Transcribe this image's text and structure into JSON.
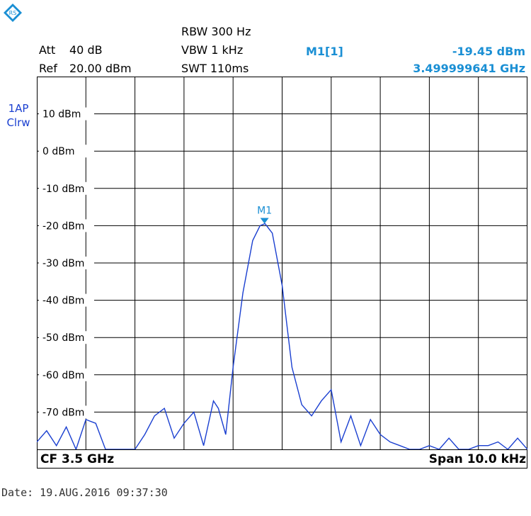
{
  "header": {
    "att_label": "Att",
    "att_value": "40 dB",
    "ref_label": "Ref",
    "ref_value": "20.00 dBm",
    "rbw": "RBW 300 Hz",
    "vbw": "VBW 1 kHz",
    "swt": "SWT 110ms",
    "marker_name": "M1[1]",
    "marker_level": "-19.45 dBm",
    "marker_freq": "3.499999641 GHz"
  },
  "trace_label": {
    "line1": "1AP",
    "line2": "Clrw"
  },
  "footer": {
    "cf": "CF 3.5 GHz",
    "span": "Span 10.0 kHz"
  },
  "date_text": "Date: 19.AUG.2016  09:37:30",
  "logo_icon": "rohde-schwarz-logo-icon",
  "colors": {
    "trace": "#1a3fd0",
    "marker": "#1a8fd4",
    "grid": "#000000"
  },
  "chart_data": {
    "type": "line",
    "title": "",
    "xlabel": "",
    "ylabel": "",
    "x_unit": "kHz",
    "y_unit": "dBm",
    "xlim": [
      3499995.0,
      3500005.0
    ],
    "ylim": [
      -80,
      20
    ],
    "yticks": [
      10,
      0,
      -10,
      -20,
      -30,
      -40,
      -50,
      -60,
      -70
    ],
    "ytick_labels": [
      "10 dBm",
      "0 dBm",
      "-10 dBm",
      "-20 dBm",
      "-30 dBm",
      "-40 dBm",
      "-50 dBm",
      "-60 dBm",
      "-70 dBm"
    ],
    "grid": true,
    "legend": "none",
    "marker": {
      "label": "M1",
      "x": 3499999.641,
      "y": -19.45
    },
    "series": [
      {
        "x": [
          3499995.0,
          3499995.2,
          3499995.4,
          3499995.6,
          3499995.8,
          3499996.0,
          3499996.2,
          3499996.4,
          3499996.6,
          3499996.8,
          3499997.0,
          3499997.2,
          3499997.4,
          3499997.6,
          3499997.8,
          3499998.0,
          3499998.2,
          3499998.4,
          3499998.6,
          3499998.7,
          3499998.85,
          3499999.0,
          3499999.2,
          3499999.4,
          3499999.55,
          3499999.65,
          3499999.8,
          3500000.0,
          3500000.2,
          3500000.4,
          3500000.6,
          3500000.8,
          3500001.0,
          3500001.2,
          3500001.4,
          3500001.6,
          3500001.8,
          3500002.0,
          3500002.2,
          3500002.4,
          3500002.6,
          3500002.8,
          3500003.0,
          3500003.2,
          3500003.4,
          3500003.6,
          3500003.8,
          3500004.0,
          3500004.2,
          3500004.4,
          3500004.6,
          3500004.8,
          3500005.0
        ],
        "y": [
          -78,
          -75,
          -79,
          -74,
          -80,
          -72,
          -73,
          -80,
          -80,
          -80,
          -80,
          -76,
          -71,
          -69,
          -77,
          -73,
          -70,
          -79,
          -67,
          -69,
          -76,
          -58,
          -38,
          -24,
          -20,
          -19.45,
          -22,
          -36,
          -58,
          -68,
          -71,
          -67,
          -64,
          -78,
          -71,
          -79,
          -72,
          -76,
          -78,
          -79,
          -80,
          -80,
          -79,
          -80,
          -77,
          -80,
          -80,
          -79,
          -79,
          -78,
          -80,
          -77,
          -80
        ]
      }
    ]
  }
}
